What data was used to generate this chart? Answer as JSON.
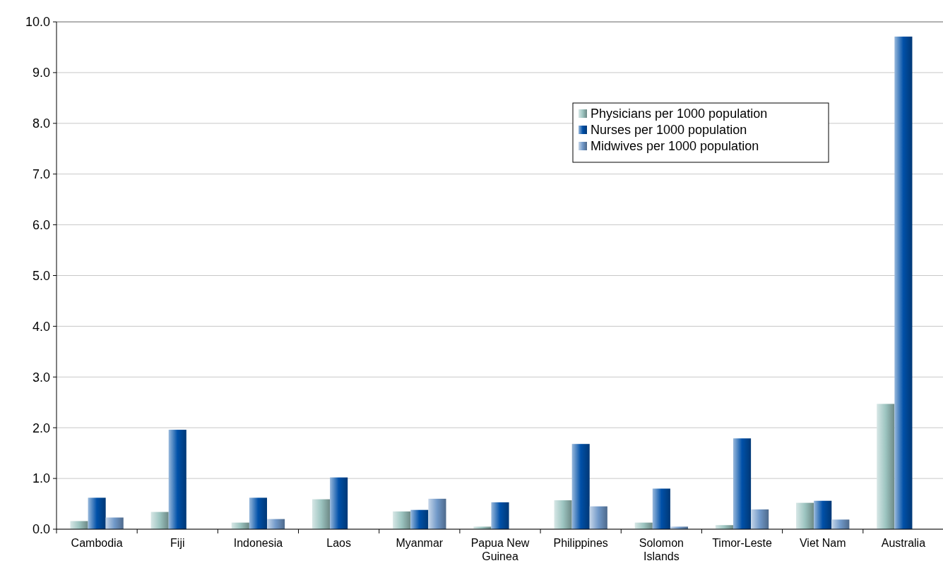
{
  "chart_data": {
    "type": "bar",
    "categories": [
      "Cambodia",
      "Fiji",
      "Indonesia",
      "Laos",
      "Myanmar",
      "Papua New Guinea",
      "Philippines",
      "Solomon Islands",
      "Timor-Leste",
      "Viet Nam",
      "Australia"
    ],
    "series": [
      {
        "name": "Physicians per 1000 population",
        "color": "#9cc4c0",
        "values": [
          0.16,
          0.34,
          0.13,
          0.59,
          0.35,
          0.05,
          0.57,
          0.13,
          0.08,
          0.52,
          2.47
        ]
      },
      {
        "name": "Nurses per 1000 population",
        "color": "#0050a8",
        "values": [
          0.62,
          1.96,
          0.62,
          1.02,
          0.38,
          0.53,
          1.68,
          0.8,
          1.79,
          0.56,
          9.71
        ]
      },
      {
        "name": "Midwives per 1000 population",
        "color": "#7098c8",
        "values": [
          0.23,
          null,
          0.2,
          null,
          0.6,
          null,
          0.45,
          0.05,
          0.39,
          0.19,
          null
        ]
      }
    ],
    "ylim": [
      0,
      10
    ],
    "yticks": [
      {
        "value": 0,
        "label": "0.0"
      },
      {
        "value": 1,
        "label": "1.0"
      },
      {
        "value": 2,
        "label": "2.0"
      },
      {
        "value": 3,
        "label": "3.0"
      },
      {
        "value": 4,
        "label": "4.0"
      },
      {
        "value": 5,
        "label": "5.0"
      },
      {
        "value": 6,
        "label": "6.0"
      },
      {
        "value": 7,
        "label": "7.0"
      },
      {
        "value": 8,
        "label": "8.0"
      },
      {
        "value": 9,
        "label": "9.0"
      },
      {
        "value": 10,
        "label": "10.0"
      }
    ],
    "grid": "y",
    "legend": "top right"
  }
}
